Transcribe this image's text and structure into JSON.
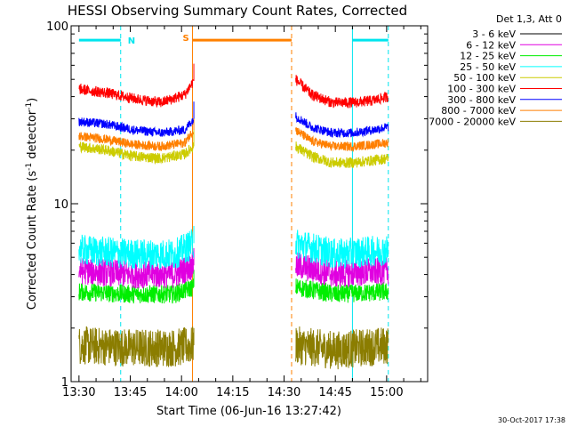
{
  "chart_data": {
    "type": "line",
    "title": "HESSI Observing Summary Count Rates, Corrected",
    "xlabel": "Start Time (06-Jun-16 13:27:42)",
    "ylabel": "Corrected Count Rate (s",
    "ylabel_sup": "-1",
    "ylabel_mid": " detector",
    "ylabel_end": ")",
    "stamp": "30-Oct-2017 17:38",
    "x_ticks": [
      "13:30",
      "13:45",
      "14:00",
      "14:15",
      "14:30",
      "14:45",
      "15:00"
    ],
    "x_tick_minutes": [
      810,
      825,
      840,
      855,
      870,
      885,
      900
    ],
    "xlim_minutes": [
      807.7,
      912.0
    ],
    "y_scale": "log",
    "ylim": [
      1,
      100
    ],
    "y_ticks": [
      "1",
      "10",
      "100"
    ],
    "y_tick_values": [
      1,
      10,
      100
    ],
    "legend_header": "Det 1,3, Att 0",
    "legend_placement": "top-right",
    "annotations": {
      "night_label": "N",
      "saa_label": "S",
      "night_bars": [
        [
          810,
          822.2
        ],
        [
          890,
          900.5
        ]
      ],
      "night_lines": [
        822.2,
        890,
        900.5
      ],
      "saa_bar": [
        843.2,
        872.2
      ],
      "saa_lines": [
        843.2,
        872.2
      ],
      "annotation_level": 83,
      "night_color": "#00e5ee",
      "saa_color": "#ff8000"
    },
    "gap": [
      843.8,
      873.4
    ],
    "series": [
      {
        "name": "3 - 6 keV",
        "color": "#000000",
        "segments": [
          [
            [
              810,
              1.0
            ],
            [
              843.5,
              1.0
            ]
          ],
          [
            [
              873.4,
              1.0
            ],
            [
              900.5,
              1.0
            ]
          ]
        ]
      },
      {
        "name": "6 - 12 keV",
        "color": "#e000e0",
        "segments": [
          [
            [
              810,
              4.2
            ],
            [
              826,
              4.0
            ],
            [
              838,
              4.0
            ],
            [
              843.5,
              4.5
            ]
          ],
          [
            [
              873.4,
              4.5
            ],
            [
              885,
              4.0
            ],
            [
              900.5,
              4.2
            ]
          ]
        ]
      },
      {
        "name": "12 - 25 keV",
        "color": "#00ee00",
        "segments": [
          [
            [
              810,
              3.2
            ],
            [
              826,
              3.1
            ],
            [
              838,
              3.1
            ],
            [
              843.5,
              3.4
            ]
          ],
          [
            [
              873.4,
              3.4
            ],
            [
              885,
              3.1
            ],
            [
              900.5,
              3.2
            ]
          ]
        ]
      },
      {
        "name": "25 - 50 keV",
        "color": "#00ffff",
        "segments": [
          [
            [
              810,
              5.5
            ],
            [
              826,
              5.2
            ],
            [
              838,
              5.2
            ],
            [
              843.5,
              6.0
            ]
          ],
          [
            [
              873.4,
              6.0
            ],
            [
              885,
              5.2
            ],
            [
              900.5,
              5.5
            ]
          ]
        ]
      },
      {
        "name": "50 - 100 keV",
        "color": "#cccc00",
        "segments": [
          [
            [
              810,
              21
            ],
            [
              818,
              20
            ],
            [
              826,
              18.5
            ],
            [
              834,
              18
            ],
            [
              841,
              19
            ],
            [
              843.5,
              21
            ]
          ],
          [
            [
              873.4,
              21
            ],
            [
              878,
              18.5
            ],
            [
              884,
              17
            ],
            [
              890,
              17
            ],
            [
              896,
              17.5
            ],
            [
              900.5,
              18
            ]
          ]
        ]
      },
      {
        "name": "100 - 300 keV",
        "color": "#ff0000",
        "segments": [
          [
            [
              810,
              44
            ],
            [
              818,
              42
            ],
            [
              826,
              39
            ],
            [
              834,
              37
            ],
            [
              841,
              41
            ],
            [
              843.5,
              49
            ]
          ],
          [
            [
              873.4,
              50
            ],
            [
              878,
              41
            ],
            [
              884,
              37
            ],
            [
              890,
              37
            ],
            [
              896,
              38
            ],
            [
              900.5,
              40
            ]
          ]
        ]
      },
      {
        "name": "300 - 800 keV",
        "color": "#0000ff",
        "segments": [
          [
            [
              810,
              29
            ],
            [
              818,
              28
            ],
            [
              826,
              26
            ],
            [
              834,
              25
            ],
            [
              841,
              26
            ],
            [
              843.5,
              30
            ]
          ],
          [
            [
              873.4,
              31
            ],
            [
              878,
              27
            ],
            [
              884,
              25
            ],
            [
              890,
              25
            ],
            [
              896,
              26
            ],
            [
              900.5,
              27
            ]
          ]
        ]
      },
      {
        "name": "800 - 7000 keV",
        "color": "#ff7f00",
        "segments": [
          [
            [
              810,
              24
            ],
            [
              818,
              23
            ],
            [
              826,
              21.5
            ],
            [
              834,
              21
            ],
            [
              841,
              22
            ],
            [
              843.5,
              26
            ]
          ],
          [
            [
              873.4,
              26
            ],
            [
              878,
              22.5
            ],
            [
              884,
              21
            ],
            [
              890,
              21
            ],
            [
              896,
              21.5
            ],
            [
              900.5,
              22
            ]
          ]
        ]
      },
      {
        "name": "7000 - 20000 keV",
        "color": "#8b7d00",
        "segments": [
          [
            [
              810,
              1.6
            ],
            [
              826,
              1.55
            ],
            [
              838,
              1.55
            ],
            [
              843.5,
              1.6
            ]
          ],
          [
            [
              873.4,
              1.6
            ],
            [
              885,
              1.5
            ],
            [
              900.5,
              1.6
            ]
          ]
        ]
      }
    ]
  }
}
